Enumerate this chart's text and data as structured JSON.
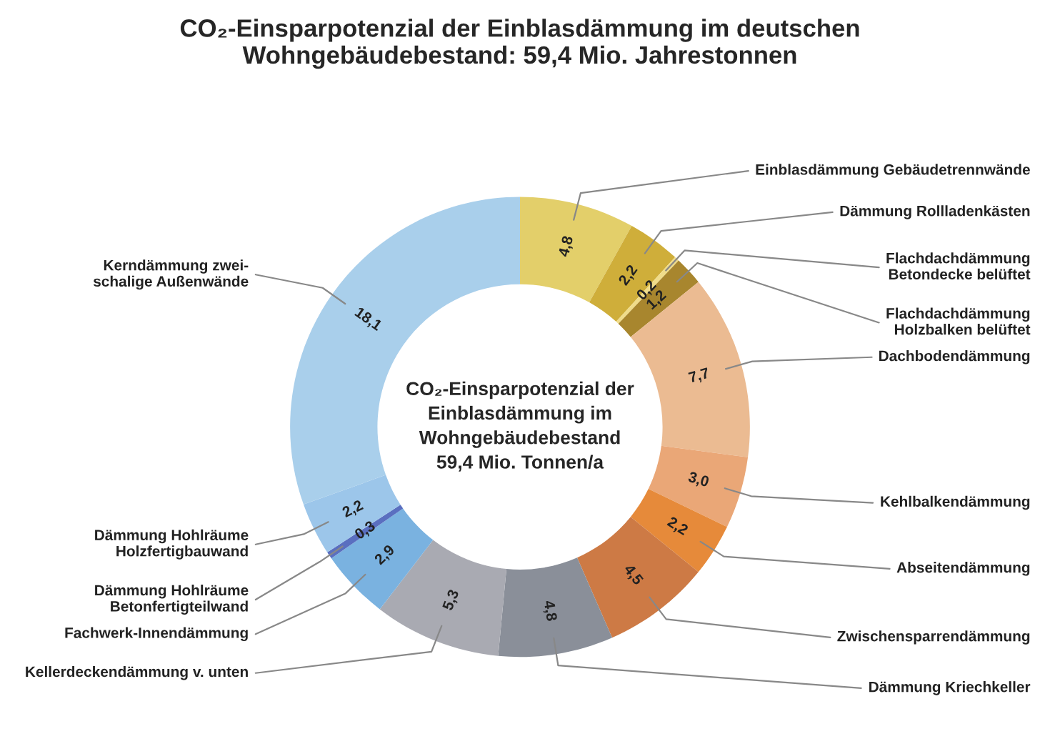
{
  "chart_data": {
    "type": "donut",
    "title": "CO₂-Einsparpotenzial der Einblasdämmung im deutschen\nWohngebäudebestand: 59,4 Mio. Jahrestonnen",
    "categories": [
      "Einblasdämmung Gebäudetrennwände",
      "Dämmung Rollladenkästen",
      "Flachdachdämmung\nBetondecke belüftet",
      "Flachdachdämmung\nHolzbalken belüftet",
      "Dachbodendämmung",
      "Kehlbalkendämmung",
      "Abseitendämmung",
      "Zwischensparrendämmung",
      "Dämmung Kriechkeller",
      "Kellerdeckendämmung v. unten",
      "Fachwerk-Innendämmung",
      "Dämmung Hohlräume\nBetonfertigteilwand",
      "Dämmung Hohlräume\nHolzfertigbauwand",
      "Kerndämmung zwei-\nschalige Außenwände"
    ],
    "values": [
      4.8,
      2.2,
      0.2,
      1.2,
      7.7,
      3.0,
      2.2,
      4.5,
      4.8,
      5.3,
      2.9,
      0.3,
      2.2,
      18.1
    ],
    "value_labels": [
      "4,8",
      "2,2",
      "0,2",
      "1,2",
      "7,7",
      "3,0",
      "2,2",
      "4,5",
      "4,8",
      "5,3",
      "2,9",
      "0,3",
      "2,2",
      "18,1"
    ],
    "colors": [
      "#e3cf6a",
      "#cfae3a",
      "#f0dc8a",
      "#a8862e",
      "#ebbb92",
      "#eaa777",
      "#e68a3a",
      "#cd7a45",
      "#8a8f99",
      "#a9aab2",
      "#7ab2e0",
      "#5a6fc0",
      "#9cc6ea",
      "#a9cfeb"
    ],
    "annotations": [
      "CO₂-Einsparpotenzial der\nEinblasdämmung im\nWohngebäudebestand\n59,4 Mio. Tonnen/a"
    ],
    "legend": false
  }
}
